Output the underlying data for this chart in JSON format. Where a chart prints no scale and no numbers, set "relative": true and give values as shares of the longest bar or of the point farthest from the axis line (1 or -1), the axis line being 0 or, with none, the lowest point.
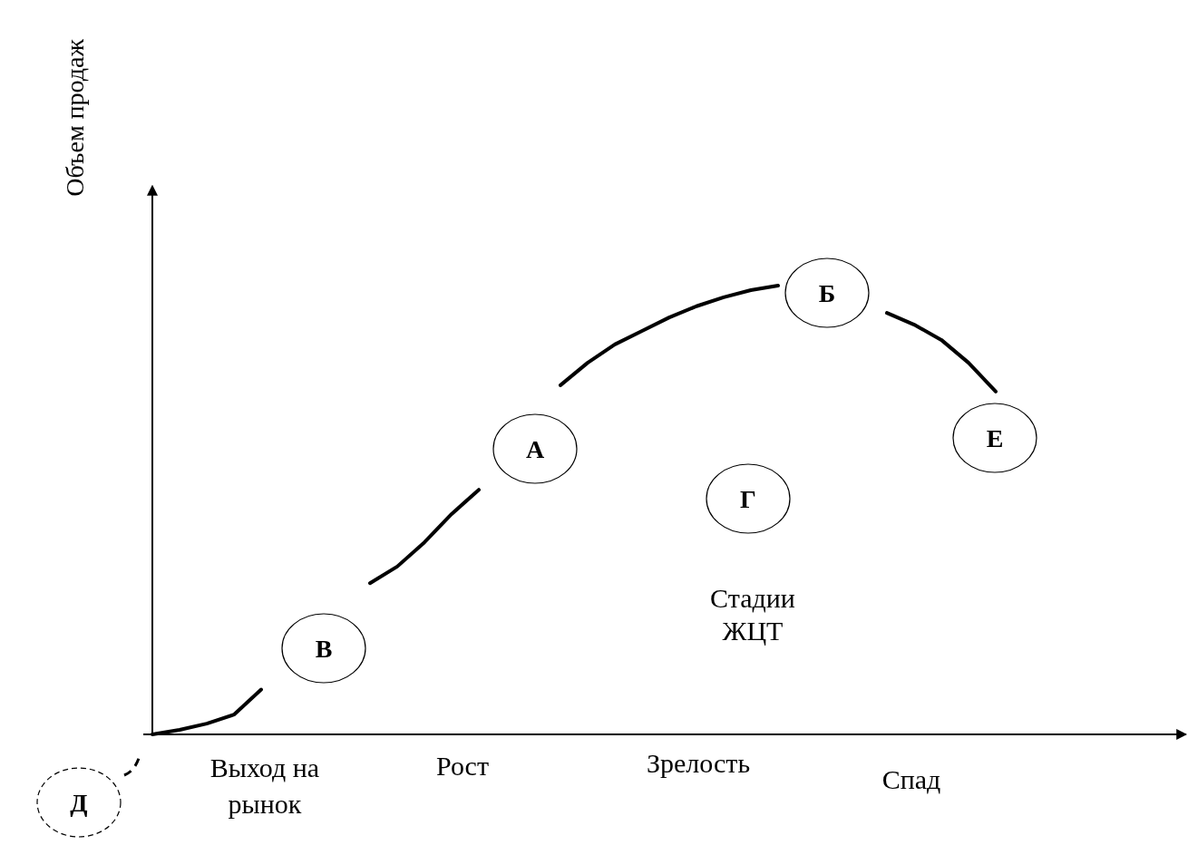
{
  "chart_data": {
    "type": "line",
    "relative": true,
    "ylabel": "Объем продаж",
    "xlabel": "Стадии ЖЦТ",
    "categories": [
      null,
      null,
      null,
      null,
      null,
      null,
      null,
      null,
      null,
      null,
      null,
      null,
      null,
      null,
      null,
      null,
      null,
      null,
      null,
      null,
      null,
      null,
      null,
      null,
      null,
      null,
      null,
      null,
      null,
      null,
      null,
      null
    ],
    "series": [
      {
        "color": "#000000",
        "values": [
          0,
          0.01,
          0.024,
          0.044,
          0.1,
          null,
          null,
          null,
          null,
          null,
          null,
          null,
          null,
          null,
          null,
          null,
          null,
          null,
          null,
          null,
          null,
          null,
          null,
          null,
          null,
          null,
          null,
          null,
          null,
          null,
          null,
          null
        ]
      },
      {
        "color": "#000000",
        "values": [
          null,
          null,
          null,
          null,
          null,
          null,
          null,
          null,
          0.337,
          0.374,
          0.428,
          0.491,
          0.545,
          null,
          null,
          null,
          null,
          null,
          null,
          null,
          null,
          null,
          null,
          null,
          null,
          null,
          null,
          null,
          null,
          null,
          null,
          null
        ]
      },
      {
        "color": "#000000",
        "values": [
          null,
          null,
          null,
          null,
          null,
          null,
          null,
          null,
          null,
          null,
          null,
          null,
          null,
          null,
          null,
          0.778,
          0.828,
          0.869,
          0.899,
          0.929,
          0.954,
          0.974,
          0.99,
          1,
          null,
          null,
          null,
          null,
          null,
          null,
          null,
          null
        ]
      },
      {
        "color": "#000000",
        "values": [
          null,
          null,
          null,
          null,
          null,
          null,
          null,
          null,
          null,
          null,
          null,
          null,
          null,
          null,
          null,
          null,
          null,
          null,
          null,
          null,
          null,
          null,
          null,
          null,
          null,
          null,
          null,
          0.939,
          0.913,
          0.879,
          0.828,
          0.764
        ]
      }
    ],
    "annotations": [
      "А",
      "Б",
      "В",
      "Г",
      "Д",
      "Е",
      "Выход на рынок",
      "Рост",
      "Зрелость",
      "Спад"
    ]
  }
}
